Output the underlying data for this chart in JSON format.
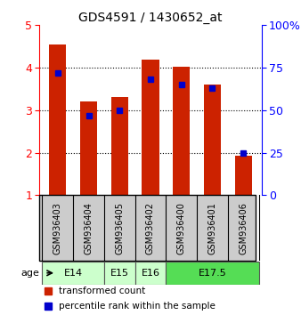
{
  "title": "GDS4591 / 1430652_at",
  "samples": [
    "GSM936403",
    "GSM936404",
    "GSM936405",
    "GSM936402",
    "GSM936400",
    "GSM936401",
    "GSM936406"
  ],
  "bar_values": [
    4.55,
    3.2,
    3.32,
    4.18,
    4.02,
    3.6,
    1.93
  ],
  "percentile_values": [
    72,
    47,
    50,
    68,
    65,
    63,
    25
  ],
  "bar_color": "#cc2200",
  "percentile_color": "#0000cc",
  "ylim": [
    1,
    5
  ],
  "yticks": [
    1,
    2,
    3,
    4,
    5
  ],
  "percentile_ylim": [
    0,
    100
  ],
  "percentile_yticks": [
    0,
    25,
    50,
    75,
    100
  ],
  "percentile_yticklabels": [
    "0",
    "25",
    "50",
    "75",
    "100%"
  ],
  "age_groups": [
    {
      "label": "E14",
      "samples": [
        0,
        1
      ],
      "color": "#ccffcc"
    },
    {
      "label": "E15",
      "samples": [
        2
      ],
      "color": "#ccffcc"
    },
    {
      "label": "E16",
      "samples": [
        3
      ],
      "color": "#ccffcc"
    },
    {
      "label": "E17.5",
      "samples": [
        4,
        5,
        6
      ],
      "color": "#55dd55"
    }
  ],
  "bar_width": 0.55,
  "background_color": "#ffffff",
  "plot_bg": "#ffffff",
  "sample_box_color": "#cccccc",
  "legend_labels": [
    "transformed count",
    "percentile rank within the sample"
  ],
  "age_label": "age"
}
